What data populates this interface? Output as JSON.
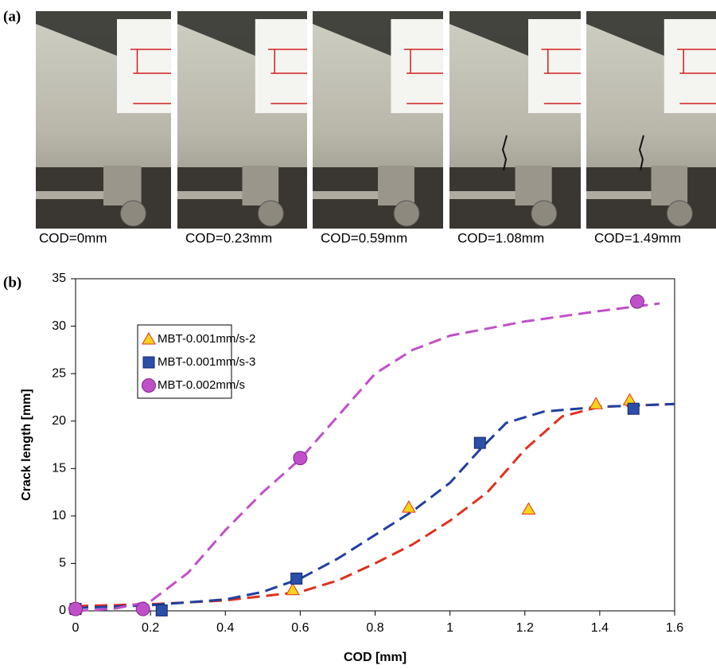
{
  "panel_a": {
    "label": "(a)",
    "captions": [
      "COD=0mm",
      "COD=0.23mm",
      "COD=0.59mm",
      "COD=1.08mm",
      "COD=1.49mm"
    ]
  },
  "chart_data": {
    "type": "scatter",
    "panel_label": "(b)",
    "x_label": "COD [mm]",
    "y_label": "Crack length [mm]",
    "xlim": [
      0,
      1.6
    ],
    "ylim": [
      0,
      35
    ],
    "xticks": [
      0,
      0.2,
      0.4,
      0.6,
      0.8,
      1,
      1.2,
      1.4,
      1.6
    ],
    "yticks": [
      0,
      5,
      10,
      15,
      20,
      25,
      30,
      35
    ],
    "grid": false,
    "legend": "upper left",
    "series": [
      {
        "name": "MBT-0.001mm/s-2",
        "marker": "triangle",
        "color": "#f7d417",
        "edge": "#e0301e",
        "x": [
          0,
          0.58,
          0.89,
          1.21,
          1.39,
          1.48
        ],
        "values": [
          0.3,
          2.2,
          10.9,
          10.7,
          21.8,
          22.2
        ],
        "curve": {
          "color": "#e0301e",
          "x": [
            0,
            0.2,
            0.4,
            0.6,
            0.7,
            0.8,
            0.9,
            1.0,
            1.1,
            1.2,
            1.3,
            1.4,
            1.6
          ],
          "y": [
            0.5,
            0.7,
            1.1,
            2,
            3.2,
            5,
            7,
            9.5,
            12.5,
            17,
            20.5,
            21.5,
            21.8
          ]
        }
      },
      {
        "name": "MBT-0.001mm/s-3",
        "marker": "square",
        "color": "#2a4fa8",
        "edge": "#16236e",
        "x": [
          0,
          0.23,
          0.59,
          1.08,
          1.49
        ],
        "values": [
          0.2,
          0.05,
          3.4,
          17.7,
          21.3
        ],
        "curve": {
          "color": "#2040a0",
          "x": [
            0,
            0.2,
            0.4,
            0.5,
            0.6,
            0.7,
            0.8,
            0.9,
            1.0,
            1.08,
            1.15,
            1.25,
            1.4,
            1.6
          ],
          "y": [
            0.3,
            0.6,
            1.2,
            2,
            3.4,
            5.5,
            8,
            10.5,
            13.5,
            17,
            19.8,
            21,
            21.5,
            21.8
          ]
        }
      },
      {
        "name": "MBT-0.002mm/s",
        "marker": "circle",
        "color": "#c050c8",
        "edge": "#7a2a8a",
        "x": [
          0,
          0.18,
          0.6,
          1.5
        ],
        "values": [
          0.2,
          0.2,
          16.1,
          32.6
        ],
        "curve": {
          "color": "#c050c8",
          "x": [
            0,
            0.1,
            0.2,
            0.3,
            0.4,
            0.5,
            0.6,
            0.7,
            0.8,
            0.9,
            1.0,
            1.2,
            1.4,
            1.56
          ],
          "y": [
            0,
            0.2,
            1,
            4,
            8.5,
            12.5,
            16,
            20.5,
            25,
            27.5,
            29,
            30.5,
            31.6,
            32.4
          ]
        }
      }
    ]
  }
}
